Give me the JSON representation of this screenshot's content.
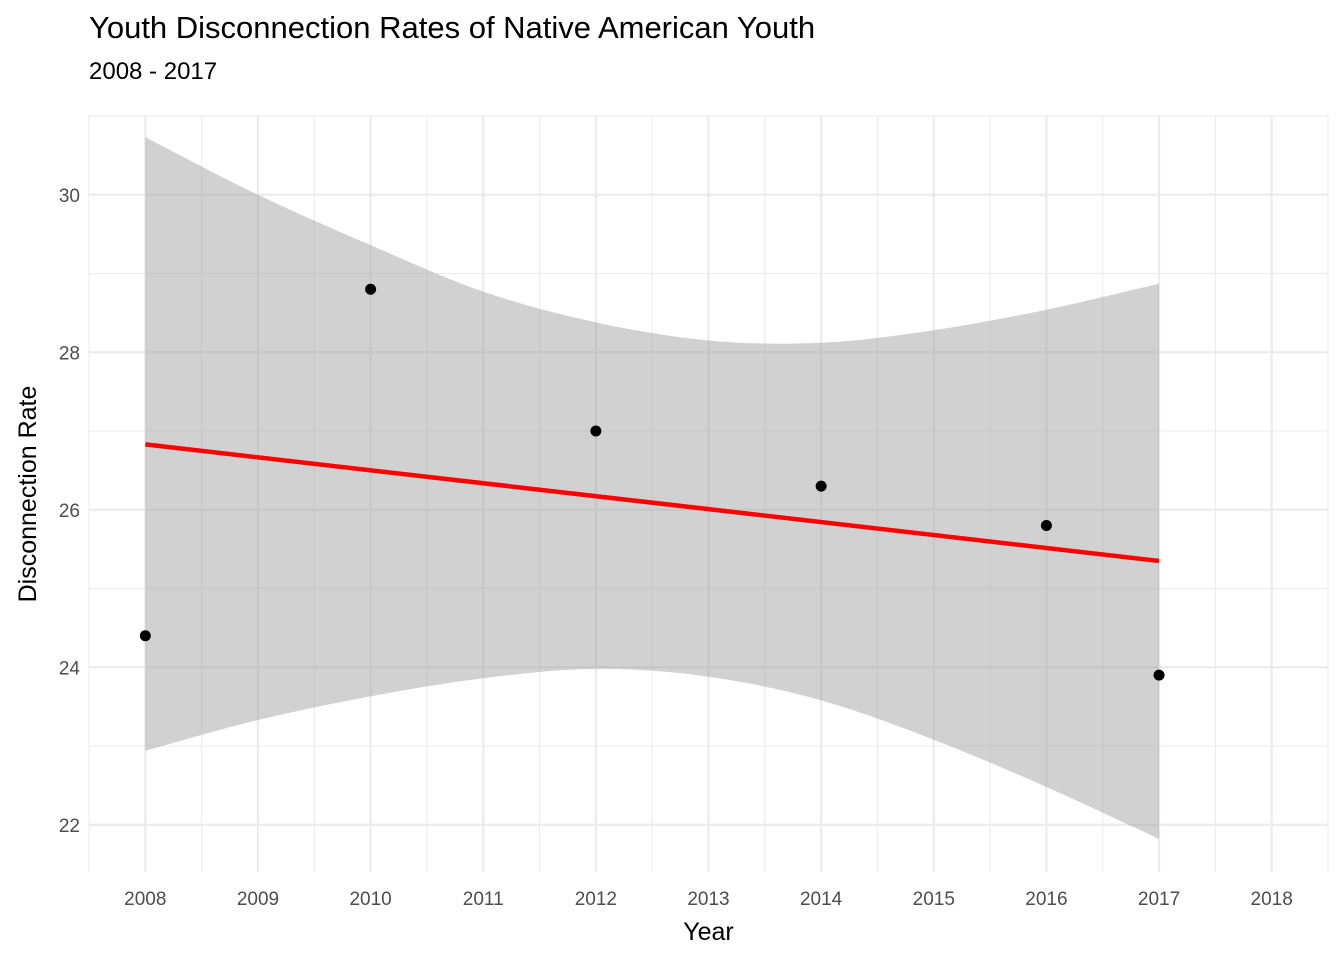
{
  "chart_data": {
    "type": "scatter",
    "title": "Youth Disconnection Rates of Native American Youth",
    "subtitle": "2008 - 2017",
    "xlabel": "Year",
    "ylabel": "Disconnection Rate",
    "xlim": [
      2007.5,
      2018.5
    ],
    "ylim": [
      21.4,
      31.0
    ],
    "x_ticks": [
      2008,
      2009,
      2010,
      2011,
      2012,
      2013,
      2014,
      2015,
      2016,
      2017,
      2018
    ],
    "y_ticks": [
      22,
      24,
      26,
      28,
      30
    ],
    "points": [
      {
        "x": 2008,
        "y": 24.4
      },
      {
        "x": 2010,
        "y": 28.8
      },
      {
        "x": 2012,
        "y": 27.0
      },
      {
        "x": 2014,
        "y": 26.3
      },
      {
        "x": 2016,
        "y": 25.8
      },
      {
        "x": 2017,
        "y": 23.9
      }
    ],
    "trend_line": {
      "x": [
        2008,
        2017
      ],
      "y": [
        26.83,
        25.35
      ]
    },
    "confidence_band": {
      "x": [
        2008,
        2009,
        2010,
        2011,
        2012,
        2013,
        2014,
        2015,
        2016,
        2017
      ],
      "upper": [
        30.73,
        30.0,
        29.36,
        28.77,
        28.38,
        28.15,
        28.12,
        28.28,
        28.54,
        28.87
      ],
      "lower": [
        22.94,
        23.33,
        23.63,
        23.86,
        23.98,
        23.88,
        23.58,
        23.08,
        22.48,
        21.82
      ]
    },
    "grid": true,
    "legend": "none",
    "colors": {
      "points": "#000000",
      "trend_line": "#ff0000",
      "band": "#cfcfcf",
      "grid": "#ebebeb"
    }
  }
}
